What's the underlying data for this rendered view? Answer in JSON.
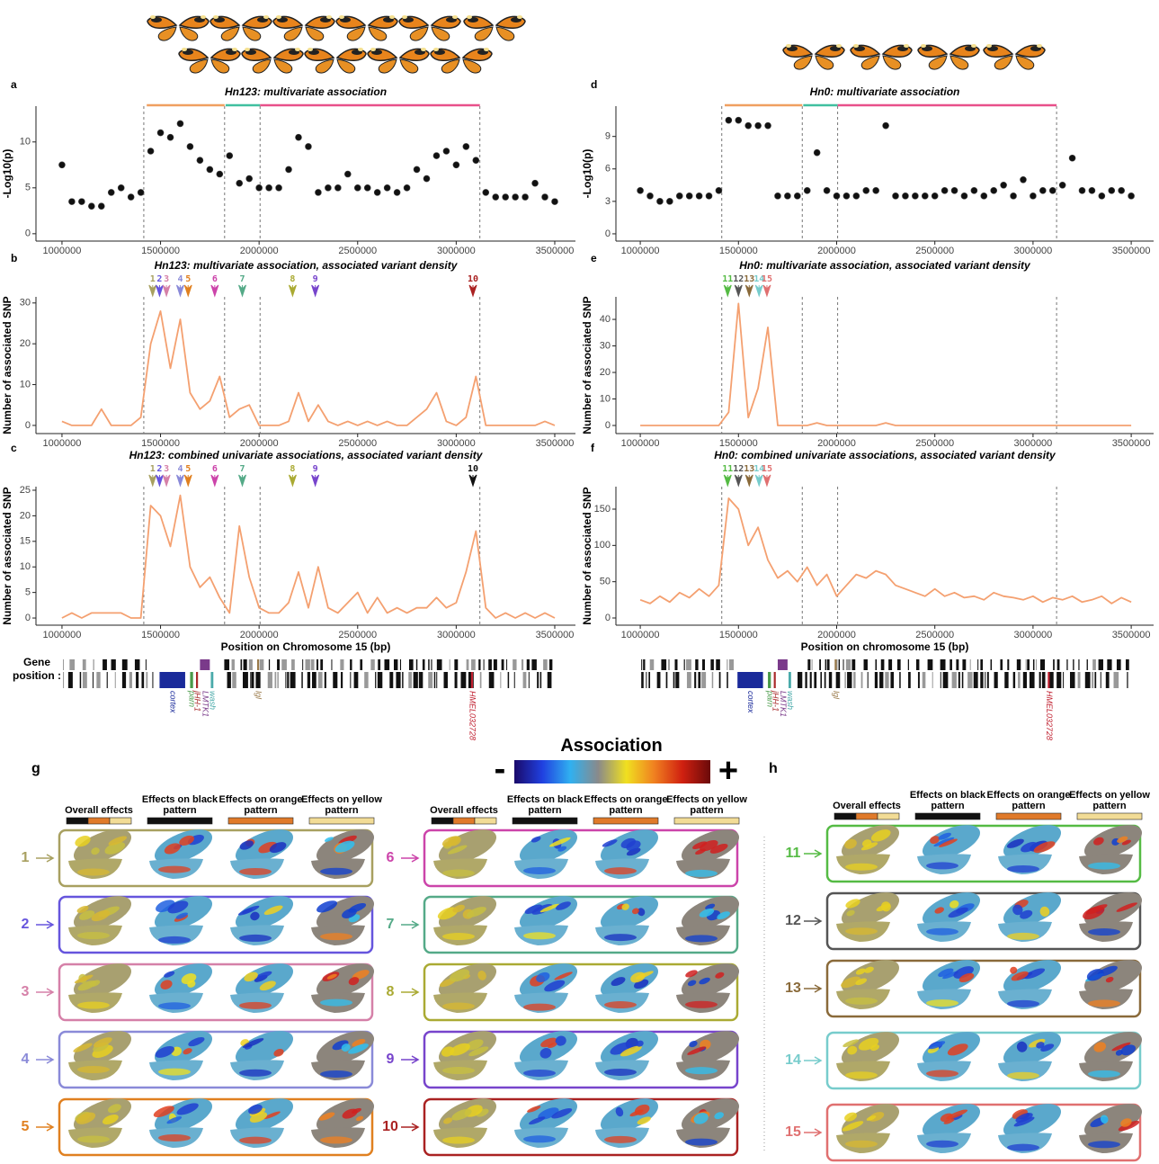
{
  "chart_data": [
    {
      "type": "scatter",
      "letter": "a",
      "title": "Hn123: multivariate association",
      "y_label": "-Log10(p)",
      "x": [
        1000000,
        1050000,
        1100000,
        1150000,
        1200000,
        1250000,
        1300000,
        1350000,
        1400000,
        1450000,
        1500000,
        1550000,
        1600000,
        1650000,
        1700000,
        1750000,
        1800000,
        1850000,
        1900000,
        1950000,
        2000000,
        2050000,
        2100000,
        2150000,
        2200000,
        2250000,
        2300000,
        2350000,
        2400000,
        2450000,
        2500000,
        2550000,
        2600000,
        2650000,
        2700000,
        2750000,
        2800000,
        2850000,
        2900000,
        2950000,
        3000000,
        3050000,
        3100000,
        3150000,
        3200000,
        3250000,
        3300000,
        3350000,
        3400000,
        3450000,
        3500000
      ],
      "values": [
        7.5,
        3.5,
        3.5,
        3,
        3,
        4.5,
        5,
        4,
        4.5,
        9,
        11,
        10.5,
        12,
        9.5,
        8,
        7,
        6.5,
        8.5,
        5.5,
        6,
        5,
        5,
        5,
        7,
        10.5,
        9.5,
        4.5,
        5,
        5,
        6.5,
        5,
        5,
        4.5,
        5,
        4.5,
        5,
        7,
        6,
        8.5,
        9,
        7.5,
        9.5,
        8,
        4.5,
        4,
        4,
        4,
        4,
        5.5,
        4,
        3.5
      ],
      "color": "#111111",
      "xlim": [
        868000,
        3605000
      ],
      "ylim": [
        -0.8,
        13.9
      ],
      "xticks": [
        1000000,
        1500000,
        2000000,
        2500000,
        3000000,
        3500000
      ],
      "yticks": [
        0,
        5,
        10
      ],
      "vlines": [
        1415000,
        1825000,
        2005000,
        3120000
      ],
      "regions": [
        {
          "start": 1430000,
          "end": 1825000,
          "color": "#f0a060"
        },
        {
          "start": 1830000,
          "end": 2005000,
          "color": "#40c0a0"
        },
        {
          "start": 2005000,
          "end": 3120000,
          "color": "#e8508a"
        }
      ]
    },
    {
      "type": "line",
      "letter": "b",
      "title": "Hn123: multivariate association, associated variant density",
      "y_label": "Number of associated SNP",
      "x": [
        1000000,
        1050000,
        1100000,
        1150000,
        1200000,
        1250000,
        1300000,
        1350000,
        1400000,
        1450000,
        1500000,
        1550000,
        1600000,
        1650000,
        1700000,
        1750000,
        1800000,
        1850000,
        1900000,
        1950000,
        2000000,
        2050000,
        2100000,
        2150000,
        2200000,
        2250000,
        2300000,
        2350000,
        2400000,
        2450000,
        2500000,
        2550000,
        2600000,
        2650000,
        2700000,
        2750000,
        2800000,
        2850000,
        2900000,
        2950000,
        3000000,
        3050000,
        3100000,
        3150000,
        3200000,
        3250000,
        3300000,
        3350000,
        3400000,
        3450000,
        3500000
      ],
      "values": [
        1,
        0,
        0,
        0,
        4,
        0,
        0,
        0,
        2,
        20,
        28,
        14,
        26,
        8,
        4,
        6,
        12,
        2,
        4,
        5,
        0,
        0,
        0,
        1,
        8,
        1,
        5,
        1,
        0,
        1,
        0,
        1,
        0,
        1,
        0,
        0,
        2,
        4,
        8,
        1,
        0,
        2,
        12,
        0,
        0,
        0,
        0,
        0,
        0,
        1,
        0
      ],
      "color": "#f4a070",
      "xlim": [
        868000,
        3605000
      ],
      "ylim": [
        -2,
        31.5
      ],
      "xticks": [
        1000000,
        1500000,
        2000000,
        2500000,
        3000000,
        3500000
      ],
      "yticks": [
        0,
        10,
        20,
        30
      ],
      "vlines": [
        1415000,
        1825000,
        2005000,
        3120000
      ],
      "markers": [
        {
          "label": "1",
          "x": 1460000,
          "color": "#a8a060"
        },
        {
          "label": "2",
          "x": 1495000,
          "color": "#6655dd"
        },
        {
          "label": "3",
          "x": 1530000,
          "color": "#d580a8"
        },
        {
          "label": "4",
          "x": 1600000,
          "color": "#8a8ad8"
        },
        {
          "label": "5",
          "x": 1640000,
          "color": "#e08020"
        },
        {
          "label": "6",
          "x": 1775000,
          "color": "#cc44aa"
        },
        {
          "label": "7",
          "x": 1915000,
          "color": "#55aa88"
        },
        {
          "label": "8",
          "x": 2170000,
          "color": "#aaaa33"
        },
        {
          "label": "9",
          "x": 2285000,
          "color": "#7744cc"
        },
        {
          "label": "10",
          "x": 3085000,
          "color": "#aa2222"
        }
      ]
    },
    {
      "type": "line",
      "letter": "c",
      "title": "Hn123: combined univariate associations, associated variant density",
      "y_label": "Number of associated SNP",
      "x_label": "Position on Chromosome 15 (bp)",
      "x": [
        1000000,
        1050000,
        1100000,
        1150000,
        1200000,
        1250000,
        1300000,
        1350000,
        1400000,
        1450000,
        1500000,
        1550000,
        1600000,
        1650000,
        1700000,
        1750000,
        1800000,
        1850000,
        1900000,
        1950000,
        2000000,
        2050000,
        2100000,
        2150000,
        2200000,
        2250000,
        2300000,
        2350000,
        2400000,
        2450000,
        2500000,
        2550000,
        2600000,
        2650000,
        2700000,
        2750000,
        2800000,
        2850000,
        2900000,
        2950000,
        3000000,
        3050000,
        3100000,
        3150000,
        3200000,
        3250000,
        3300000,
        3350000,
        3400000,
        3450000,
        3500000
      ],
      "values": [
        0,
        1,
        0,
        1,
        1,
        1,
        1,
        0,
        0,
        22,
        20,
        14,
        24,
        10,
        6,
        8,
        4,
        1,
        18,
        8,
        2,
        1,
        1,
        3,
        9,
        2,
        10,
        2,
        1,
        3,
        5,
        1,
        4,
        1,
        2,
        1,
        2,
        2,
        4,
        2,
        3,
        9,
        17,
        2,
        0,
        1,
        0,
        1,
        0,
        1,
        0
      ],
      "color": "#f4a070",
      "xlim": [
        868000,
        3605000
      ],
      "ylim": [
        -1.4,
        25.7
      ],
      "xticks": [
        1000000,
        1500000,
        2000000,
        2500000,
        3000000,
        3500000
      ],
      "yticks": [
        0,
        5,
        10,
        15,
        20,
        25
      ],
      "vlines": [
        1415000,
        1825000,
        2005000,
        3120000
      ],
      "markers": [
        {
          "label": "1",
          "x": 1460000,
          "color": "#a8a060"
        },
        {
          "label": "2",
          "x": 1495000,
          "color": "#6655dd"
        },
        {
          "label": "3",
          "x": 1530000,
          "color": "#d580a8"
        },
        {
          "label": "4",
          "x": 1600000,
          "color": "#8a8ad8"
        },
        {
          "label": "5",
          "x": 1640000,
          "color": "#e08020"
        },
        {
          "label": "6",
          "x": 1775000,
          "color": "#cc44aa"
        },
        {
          "label": "7",
          "x": 1915000,
          "color": "#55aa88"
        },
        {
          "label": "8",
          "x": 2170000,
          "color": "#aaaa33"
        },
        {
          "label": "9",
          "x": 2285000,
          "color": "#7744cc"
        },
        {
          "label": "10",
          "x": 3085000,
          "color": "#111111"
        }
      ]
    },
    {
      "type": "scatter",
      "letter": "d",
      "title": "Hn0: multivariate association",
      "y_label": "-Log10(p)",
      "x": [
        1000000,
        1050000,
        1100000,
        1150000,
        1200000,
        1250000,
        1300000,
        1350000,
        1400000,
        1450000,
        1500000,
        1550000,
        1600000,
        1650000,
        1700000,
        1750000,
        1800000,
        1850000,
        1900000,
        1950000,
        2000000,
        2050000,
        2100000,
        2150000,
        2200000,
        2250000,
        2300000,
        2350000,
        2400000,
        2450000,
        2500000,
        2550000,
        2600000,
        2650000,
        2700000,
        2750000,
        2800000,
        2850000,
        2900000,
        2950000,
        3000000,
        3050000,
        3100000,
        3150000,
        3200000,
        3250000,
        3300000,
        3350000,
        3400000,
        3450000,
        3500000
      ],
      "values": [
        4,
        3.5,
        3,
        3,
        3.5,
        3.5,
        3.5,
        3.5,
        4,
        10.5,
        10.5,
        10,
        10,
        10,
        3.5,
        3.5,
        3.5,
        4,
        7.5,
        4,
        3.5,
        3.5,
        3.5,
        4,
        4,
        10,
        3.5,
        3.5,
        3.5,
        3.5,
        3.5,
        4,
        4,
        3.5,
        4,
        3.5,
        4,
        4.5,
        3.5,
        5,
        3.5,
        4,
        4,
        4.5,
        7,
        4,
        4,
        3.5,
        4,
        4,
        3.5
      ],
      "color": "#111111",
      "xlim": [
        876000,
        3614000
      ],
      "ylim": [
        -0.67,
        11.8
      ],
      "xticks": [
        1000000,
        1500000,
        2000000,
        2500000,
        3000000,
        3500000
      ],
      "yticks": [
        0,
        3,
        6,
        9
      ],
      "vlines": [
        1415000,
        1825000,
        2005000,
        3120000
      ],
      "regions": [
        {
          "start": 1430000,
          "end": 1825000,
          "color": "#f0a060"
        },
        {
          "start": 1830000,
          "end": 2005000,
          "color": "#40c0a0"
        },
        {
          "start": 2005000,
          "end": 3120000,
          "color": "#e8508a"
        }
      ]
    },
    {
      "type": "line",
      "letter": "e",
      "title": "Hn0: multivariate association, associated variant density",
      "y_label": "Number of associated SNP",
      "x": [
        1000000,
        1050000,
        1100000,
        1150000,
        1200000,
        1250000,
        1300000,
        1350000,
        1400000,
        1450000,
        1500000,
        1550000,
        1600000,
        1650000,
        1700000,
        1750000,
        1800000,
        1850000,
        1900000,
        1950000,
        2000000,
        2050000,
        2100000,
        2150000,
        2200000,
        2250000,
        2300000,
        2350000,
        2400000,
        2450000,
        2500000,
        2550000,
        2600000,
        2650000,
        2700000,
        2750000,
        2800000,
        2850000,
        2900000,
        2950000,
        3000000,
        3050000,
        3100000,
        3150000,
        3200000,
        3250000,
        3300000,
        3350000,
        3400000,
        3450000,
        3500000
      ],
      "values": [
        0,
        0,
        0,
        0,
        0,
        0,
        0,
        0,
        0,
        5,
        46,
        3,
        14,
        37,
        0,
        0,
        0,
        0,
        1,
        0,
        0,
        0,
        0,
        0,
        0,
        1,
        0,
        0,
        0,
        0,
        0,
        0,
        0,
        0,
        0,
        0,
        0,
        0,
        0,
        0,
        0,
        0,
        0,
        0,
        0,
        0,
        0,
        0,
        0,
        0,
        0
      ],
      "color": "#f4a070",
      "xlim": [
        876000,
        3614000
      ],
      "ylim": [
        -3.05,
        48.5
      ],
      "xticks": [
        1000000,
        1500000,
        2000000,
        2500000,
        3000000,
        3500000
      ],
      "yticks": [
        0,
        10,
        20,
        30,
        40
      ],
      "vlines": [
        1415000,
        1825000,
        2005000,
        3120000
      ],
      "markers": [
        {
          "label": "11",
          "x": 1445000,
          "color": "#55bb44"
        },
        {
          "label": "12",
          "x": 1500000,
          "color": "#555555"
        },
        {
          "label": "13",
          "x": 1555000,
          "color": "#8a6a3a"
        },
        {
          "label": "14",
          "x": 1605000,
          "color": "#77cccc"
        },
        {
          "label": "15",
          "x": 1645000,
          "color": "#e07070"
        }
      ]
    },
    {
      "type": "line",
      "letter": "f",
      "title": "Hn0: combined univariate associations, associated variant density",
      "y_label": "Number of associated SNP",
      "x_label": "Position on chromosome 15 (bp)",
      "x": [
        1000000,
        1050000,
        1100000,
        1150000,
        1200000,
        1250000,
        1300000,
        1350000,
        1400000,
        1450000,
        1500000,
        1550000,
        1600000,
        1650000,
        1700000,
        1750000,
        1800000,
        1850000,
        1900000,
        1950000,
        2000000,
        2050000,
        2100000,
        2150000,
        2200000,
        2250000,
        2300000,
        2350000,
        2400000,
        2450000,
        2500000,
        2550000,
        2600000,
        2650000,
        2700000,
        2750000,
        2800000,
        2850000,
        2900000,
        2950000,
        3000000,
        3050000,
        3100000,
        3150000,
        3200000,
        3250000,
        3300000,
        3350000,
        3400000,
        3450000,
        3500000
      ],
      "values": [
        25,
        20,
        30,
        22,
        35,
        28,
        40,
        30,
        45,
        165,
        150,
        100,
        125,
        80,
        55,
        65,
        50,
        70,
        45,
        60,
        30,
        45,
        60,
        55,
        65,
        60,
        45,
        40,
        35,
        30,
        40,
        30,
        35,
        28,
        30,
        25,
        35,
        30,
        28,
        25,
        30,
        22,
        28,
        25,
        30,
        22,
        25,
        30,
        20,
        28,
        22
      ],
      "color": "#f4a070",
      "xlim": [
        876000,
        3614000
      ],
      "ylim": [
        -9.9,
        181
      ],
      "xticks": [
        1000000,
        1500000,
        2000000,
        2500000,
        3000000,
        3500000
      ],
      "yticks": [
        0,
        50,
        100,
        150
      ],
      "vlines": [
        1415000,
        1825000,
        2005000,
        3120000
      ],
      "markers": [
        {
          "label": "11",
          "x": 1445000,
          "color": "#55bb44"
        },
        {
          "label": "12",
          "x": 1500000,
          "color": "#555555"
        },
        {
          "label": "13",
          "x": 1555000,
          "color": "#8a6a3a"
        },
        {
          "label": "14",
          "x": 1605000,
          "color": "#77cccc"
        },
        {
          "label": "15",
          "x": 1645000,
          "color": "#e07070"
        }
      ]
    }
  ],
  "gene_tracks": {
    "label": "Gene position :",
    "genes": [
      {
        "name": "cortex",
        "start": 1495000,
        "end": 1625000,
        "row": 1,
        "color": "#1a2a9a"
      },
      {
        "name": "parn",
        "start": 1650000,
        "end": 1665000,
        "row": 1,
        "color": "#4a9a4a"
      },
      {
        "name": "jHH-1",
        "start": 1680000,
        "end": 1690000,
        "row": 1,
        "color": "#aa2a2a"
      },
      {
        "name": "LMTK1",
        "start": 1700000,
        "end": 1750000,
        "row": 0,
        "color": "#7a3a8a"
      },
      {
        "name": "wash",
        "start": 1755000,
        "end": 1768000,
        "row": 1,
        "color": "#4aaaaa"
      },
      {
        "name": "lgl",
        "start": 1990000,
        "end": 2000000,
        "row": 0,
        "color": "#9a7a4a"
      },
      {
        "name": "HMEL032728",
        "start": 3075000,
        "end": 3085000,
        "row": 1,
        "color": "#c02030"
      }
    ]
  },
  "effects": {
    "title": "Association",
    "minus": "-",
    "plus": "+",
    "scale": [
      "#1a0a6a",
      "#2040e0",
      "#30b0f0",
      "#8a8a8a",
      "#f0e020",
      "#f08020",
      "#d02010",
      "#6a0a0a"
    ],
    "columns": [
      {
        "label": "Overall effects"
      },
      {
        "label": "Effects on black pattern",
        "color": "#111111"
      },
      {
        "label": "Effects on orange pattern",
        "color": "#e07a2a"
      },
      {
        "label": "Effects on yellow pattern",
        "color": "#f2dc96"
      }
    ],
    "panels": [
      {
        "letter": "g",
        "groups": [
          [
            {
              "label": "1",
              "color": "#a8a060"
            },
            {
              "label": "2",
              "color": "#6655dd"
            },
            {
              "label": "3",
              "color": "#d580a8"
            },
            {
              "label": "4",
              "color": "#8a8ad8"
            },
            {
              "label": "5",
              "color": "#e08020"
            }
          ],
          [
            {
              "label": "6",
              "color": "#cc44aa"
            },
            {
              "label": "7",
              "color": "#55aa88"
            },
            {
              "label": "8",
              "color": "#aaaa33"
            },
            {
              "label": "9",
              "color": "#7744cc"
            },
            {
              "label": "10",
              "color": "#aa2222"
            }
          ]
        ]
      },
      {
        "letter": "h",
        "groups": [
          [
            {
              "label": "11",
              "color": "#55bb44"
            },
            {
              "label": "12",
              "color": "#555555"
            },
            {
              "label": "13",
              "color": "#8a6a3a"
            },
            {
              "label": "14",
              "color": "#77cccc"
            },
            {
              "label": "15",
              "color": "#e07070"
            }
          ]
        ]
      }
    ]
  }
}
